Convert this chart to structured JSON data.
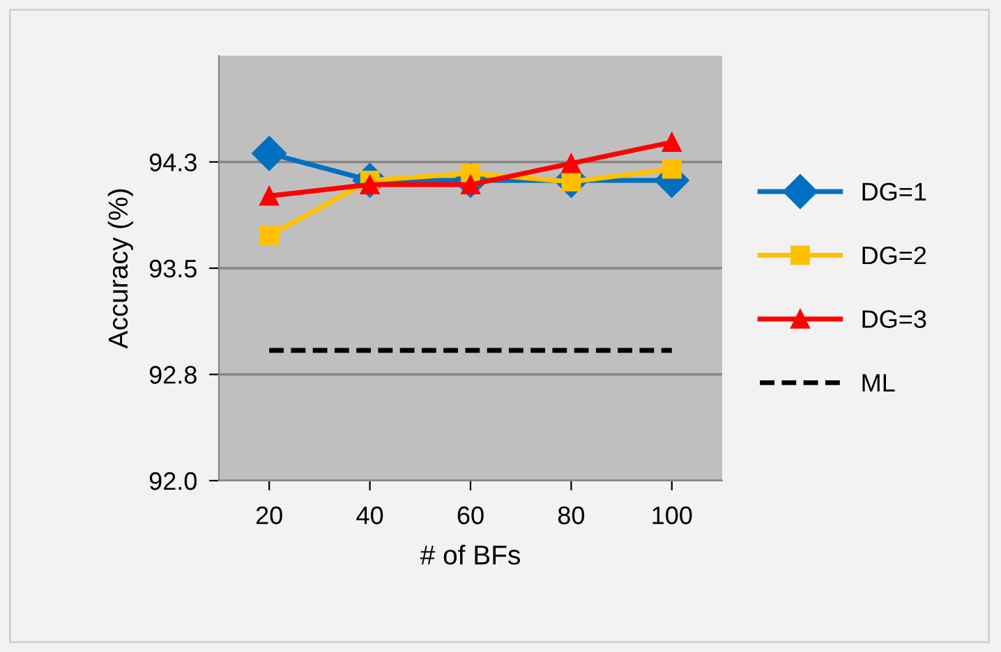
{
  "chart_data": {
    "type": "line",
    "xlabel": "# of BFs",
    "ylabel": "Accuracy (%)",
    "categories": [
      "20",
      "40",
      "60",
      "80",
      "100"
    ],
    "series": [
      {
        "name": "DG=1",
        "color": "#0070c0",
        "marker": "diamond",
        "line_style": "solid",
        "values": [
          94.31,
          94.12,
          94.12,
          94.12,
          94.12
        ]
      },
      {
        "name": "DG=2",
        "color": "#ffc000",
        "marker": "square",
        "line_style": "solid",
        "values": [
          93.73,
          94.12,
          94.17,
          94.11,
          94.2
        ]
      },
      {
        "name": "DG=3",
        "color": "#ff0000",
        "marker": "triangle",
        "line_style": "solid",
        "values": [
          94.01,
          94.09,
          94.09,
          94.24,
          94.39
        ]
      },
      {
        "name": "ML",
        "color": "#000000",
        "marker": "none",
        "line_style": "dashed",
        "values": [
          92.92,
          92.92,
          92.92,
          92.92,
          92.92
        ]
      }
    ],
    "ylim": [
      92.0,
      95.0
    ],
    "yticks": [
      {
        "value": 92.0,
        "label": "92.0"
      },
      {
        "value": 92.75,
        "label": "92.8"
      },
      {
        "value": 93.5,
        "label": "93.5"
      },
      {
        "value": 94.25,
        "label": "94.3"
      }
    ],
    "grid": "y",
    "legend": "right"
  }
}
